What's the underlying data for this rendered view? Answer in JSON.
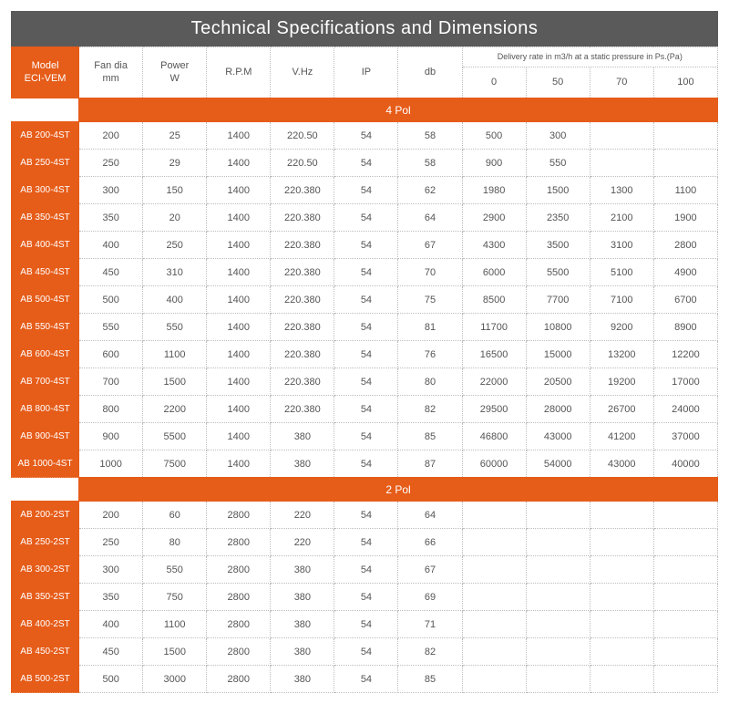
{
  "title": "Technical Specifications and Dimensions",
  "modelHeader": {
    "line1": "Model",
    "line2": "ECI-VEM"
  },
  "headers": {
    "fan": {
      "l1": "Fan dia",
      "l2": "mm"
    },
    "power": {
      "l1": "Power",
      "l2": "W"
    },
    "rpm": "R.P.M",
    "vhz": "V.Hz",
    "ip": "IP",
    "db": "db",
    "delivery": "Delivery rate in m3/h at a static pressure in Ps.(Pa)",
    "d0": "0",
    "d50": "50",
    "d70": "70",
    "d100": "100"
  },
  "sections": [
    {
      "band": "4 Pol",
      "rows": [
        {
          "m": "AB 200-4ST",
          "c": [
            "200",
            "25",
            "1400",
            "220.50",
            "54",
            "58",
            "500",
            "300",
            "",
            ""
          ]
        },
        {
          "m": "AB 250-4ST",
          "c": [
            "250",
            "29",
            "1400",
            "220.50",
            "54",
            "58",
            "900",
            "550",
            "",
            ""
          ]
        },
        {
          "m": "AB 300-4ST",
          "c": [
            "300",
            "150",
            "1400",
            "220.380",
            "54",
            "62",
            "1980",
            "1500",
            "1300",
            "1100"
          ]
        },
        {
          "m": "AB 350-4ST",
          "c": [
            "350",
            "20",
            "1400",
            "220.380",
            "54",
            "64",
            "2900",
            "2350",
            "2100",
            "1900"
          ]
        },
        {
          "m": "AB 400-4ST",
          "c": [
            "400",
            "250",
            "1400",
            "220.380",
            "54",
            "67",
            "4300",
            "3500",
            "3100",
            "2800"
          ]
        },
        {
          "m": "AB 450-4ST",
          "c": [
            "450",
            "310",
            "1400",
            "220.380",
            "54",
            "70",
            "6000",
            "5500",
            "5100",
            "4900"
          ]
        },
        {
          "m": "AB 500-4ST",
          "c": [
            "500",
            "400",
            "1400",
            "220.380",
            "54",
            "75",
            "8500",
            "7700",
            "7100",
            "6700"
          ]
        },
        {
          "m": "AB 550-4ST",
          "c": [
            "550",
            "550",
            "1400",
            "220.380",
            "54",
            "81",
            "11700",
            "10800",
            "9200",
            "8900"
          ]
        },
        {
          "m": "AB 600-4ST",
          "c": [
            "600",
            "1100",
            "1400",
            "220.380",
            "54",
            "76",
            "16500",
            "15000",
            "13200",
            "12200"
          ]
        },
        {
          "m": "AB 700-4ST",
          "c": [
            "700",
            "1500",
            "1400",
            "220.380",
            "54",
            "80",
            "22000",
            "20500",
            "19200",
            "17000"
          ]
        },
        {
          "m": "AB 800-4ST",
          "c": [
            "800",
            "2200",
            "1400",
            "220.380",
            "54",
            "82",
            "29500",
            "28000",
            "26700",
            "24000"
          ]
        },
        {
          "m": "AB 900-4ST",
          "c": [
            "900",
            "5500",
            "1400",
            "380",
            "54",
            "85",
            "46800",
            "43000",
            "41200",
            "37000"
          ]
        },
        {
          "m": "AB 1000-4ST",
          "c": [
            "1000",
            "7500",
            "1400",
            "380",
            "54",
            "87",
            "60000",
            "54000",
            "43000",
            "40000"
          ]
        }
      ]
    },
    {
      "band": "2 Pol",
      "rows": [
        {
          "m": "AB 200-2ST",
          "c": [
            "200",
            "60",
            "2800",
            "220",
            "54",
            "64",
            "",
            "",
            "",
            ""
          ]
        },
        {
          "m": "AB 250-2ST",
          "c": [
            "250",
            "80",
            "2800",
            "220",
            "54",
            "66",
            "",
            "",
            "",
            ""
          ]
        },
        {
          "m": "AB 300-2ST",
          "c": [
            "300",
            "550",
            "2800",
            "380",
            "54",
            "67",
            "",
            "",
            "",
            ""
          ]
        },
        {
          "m": "AB 350-2ST",
          "c": [
            "350",
            "750",
            "2800",
            "380",
            "54",
            "69",
            "",
            "",
            "",
            ""
          ]
        },
        {
          "m": "AB 400-2ST",
          "c": [
            "400",
            "1100",
            "2800",
            "380",
            "54",
            "71",
            "",
            "",
            "",
            ""
          ]
        },
        {
          "m": "AB 450-2ST",
          "c": [
            "450",
            "1500",
            "2800",
            "380",
            "54",
            "82",
            "",
            "",
            "",
            ""
          ]
        },
        {
          "m": "AB 500-2ST",
          "c": [
            "500",
            "3000",
            "2800",
            "380",
            "54",
            "85",
            "",
            "",
            "",
            ""
          ]
        }
      ]
    }
  ]
}
